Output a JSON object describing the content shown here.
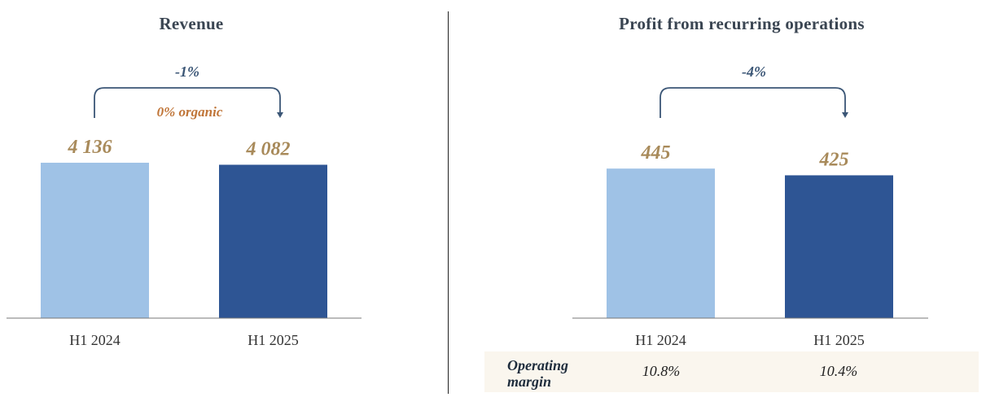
{
  "colors": {
    "h1_2024": "#9fc2e6",
    "h1_2025": "#2e5594",
    "bracket": "#3b5676"
  },
  "chart_data": [
    {
      "type": "bar",
      "title": "Revenue",
      "categories": [
        "H1 2024",
        "H1 2025"
      ],
      "values": [
        4136,
        4082
      ],
      "value_labels": [
        "4 136",
        "4 082"
      ],
      "ylim": [
        0,
        4136
      ],
      "annotations": {
        "growth": "-1%",
        "organic": "0% organic"
      }
    },
    {
      "type": "bar",
      "title": "Profit from recurring operations",
      "categories": [
        "H1 2024",
        "H1 2025"
      ],
      "values": [
        445,
        425
      ],
      "value_labels": [
        "445",
        "425"
      ],
      "ylim": [
        0,
        460
      ],
      "annotations": {
        "growth": "-4%"
      },
      "operating_margin": {
        "label_line1": "Operating",
        "label_line2": "margin",
        "values": [
          "10.8%",
          "10.4%"
        ]
      }
    }
  ]
}
